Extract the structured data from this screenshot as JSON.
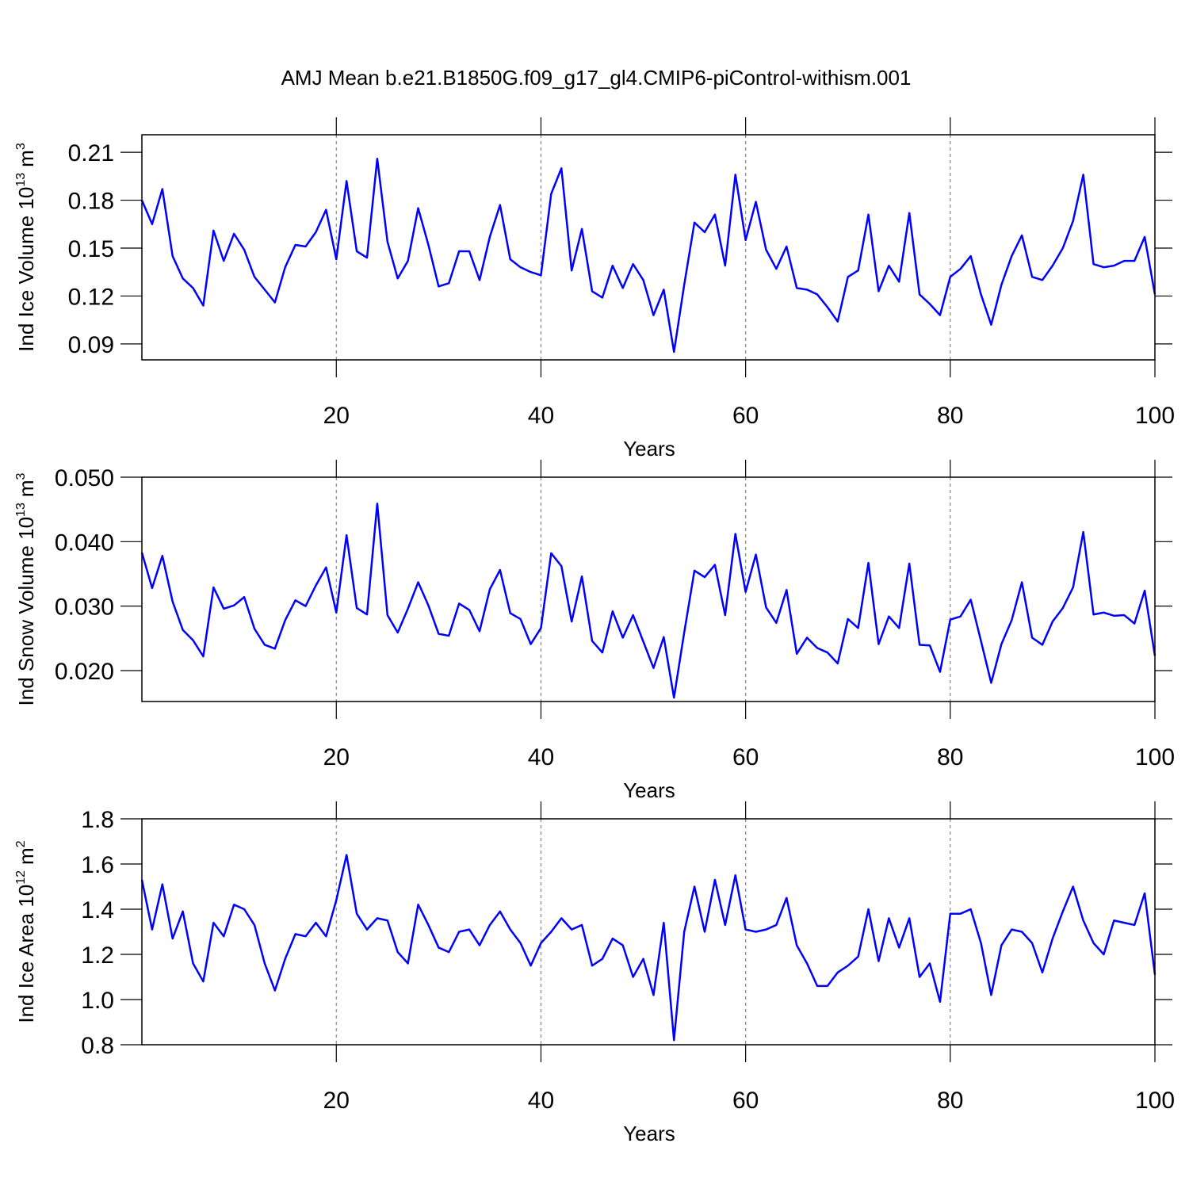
{
  "chart_data": [
    {
      "type": "line",
      "title": "AMJ Mean b.e21.B1850G.f09_g17_gl4.CMIP6-piControl-withism.001",
      "xlabel": "Years",
      "ylabel": {
        "text": "Ind Ice Volume 10",
        "exponent": "13",
        "unit": "m",
        "unit_exponent": "3"
      },
      "xlim": [
        1,
        100
      ],
      "xticks": [
        20,
        40,
        60,
        80,
        100
      ],
      "ylim": [
        0.08,
        0.221
      ],
      "yticks": [
        0.09,
        0.12,
        0.15,
        0.18,
        0.21
      ],
      "grid": "x",
      "x": [
        1,
        2,
        3,
        4,
        5,
        6,
        7,
        8,
        9,
        10,
        11,
        12,
        13,
        14,
        15,
        16,
        17,
        18,
        19,
        20,
        21,
        22,
        23,
        24,
        25,
        26,
        27,
        28,
        29,
        30,
        31,
        32,
        33,
        34,
        35,
        36,
        37,
        38,
        39,
        40,
        41,
        42,
        43,
        44,
        45,
        46,
        47,
        48,
        49,
        50,
        51,
        52,
        53,
        54,
        55,
        56,
        57,
        58,
        59,
        60,
        61,
        62,
        63,
        64,
        65,
        66,
        67,
        68,
        69,
        70,
        71,
        72,
        73,
        74,
        75,
        76,
        77,
        78,
        79,
        80,
        81,
        82,
        83,
        84,
        85,
        86,
        87,
        88,
        89,
        90,
        91,
        92,
        93,
        94,
        95,
        96,
        97,
        98,
        99,
        100
      ],
      "series": [
        {
          "color": "#0000ff",
          "values": [
            0.18,
            0.165,
            0.187,
            0.145,
            0.131,
            0.125,
            0.114,
            0.161,
            0.142,
            0.159,
            0.149,
            0.132,
            0.124,
            0.116,
            0.138,
            0.152,
            0.151,
            0.16,
            0.174,
            0.143,
            0.192,
            0.148,
            0.144,
            0.206,
            0.154,
            0.131,
            0.142,
            0.175,
            0.152,
            0.126,
            0.128,
            0.148,
            0.148,
            0.13,
            0.157,
            0.177,
            0.143,
            0.138,
            0.135,
            0.133,
            0.184,
            0.2,
            0.136,
            0.162,
            0.123,
            0.119,
            0.139,
            0.125,
            0.14,
            0.13,
            0.108,
            0.124,
            0.085,
            0.127,
            0.166,
            0.16,
            0.171,
            0.139,
            0.196,
            0.155,
            0.179,
            0.149,
            0.137,
            0.151,
            0.125,
            0.124,
            0.121,
            0.113,
            0.104,
            0.132,
            0.136,
            0.171,
            0.123,
            0.139,
            0.129,
            0.172,
            0.121,
            0.115,
            0.108,
            0.132,
            0.137,
            0.145,
            0.121,
            0.102,
            0.127,
            0.145,
            0.158,
            0.132,
            0.13,
            0.139,
            0.15,
            0.167,
            0.196,
            0.14,
            0.138,
            0.139,
            0.142,
            0.142,
            0.157,
            0.121
          ]
        }
      ]
    },
    {
      "type": "line",
      "xlabel": "Years",
      "ylabel": {
        "text": "Ind Snow Volume 10",
        "exponent": "13",
        "unit": "m",
        "unit_exponent": "3"
      },
      "xlim": [
        1,
        100
      ],
      "xticks": [
        20,
        40,
        60,
        80,
        100
      ],
      "ylim": [
        0.0152,
        0.05
      ],
      "yticks": [
        {
          "value": 0.02,
          "label": "0.020"
        },
        {
          "value": 0.03,
          "label": "0.030"
        },
        {
          "value": 0.04,
          "label": "0.040"
        },
        {
          "value": 0.05,
          "label": "0.050"
        }
      ],
      "grid": "x",
      "x": [
        1,
        2,
        3,
        4,
        5,
        6,
        7,
        8,
        9,
        10,
        11,
        12,
        13,
        14,
        15,
        16,
        17,
        18,
        19,
        20,
        21,
        22,
        23,
        24,
        25,
        26,
        27,
        28,
        29,
        30,
        31,
        32,
        33,
        34,
        35,
        36,
        37,
        38,
        39,
        40,
        41,
        42,
        43,
        44,
        45,
        46,
        47,
        48,
        49,
        50,
        51,
        52,
        53,
        54,
        55,
        56,
        57,
        58,
        59,
        60,
        61,
        62,
        63,
        64,
        65,
        66,
        67,
        68,
        69,
        70,
        71,
        72,
        73,
        74,
        75,
        76,
        77,
        78,
        79,
        80,
        81,
        82,
        83,
        84,
        85,
        86,
        87,
        88,
        89,
        90,
        91,
        92,
        93,
        94,
        95,
        96,
        97,
        98,
        99,
        100
      ],
      "series": [
        {
          "color": "#0000ff",
          "values": [
            0.0383,
            0.0328,
            0.0378,
            0.0307,
            0.0263,
            0.0247,
            0.0222,
            0.0329,
            0.0296,
            0.0301,
            0.0314,
            0.0265,
            0.024,
            0.0234,
            0.0278,
            0.0309,
            0.03,
            0.0332,
            0.036,
            0.029,
            0.041,
            0.0297,
            0.0287,
            0.0459,
            0.0286,
            0.0259,
            0.0296,
            0.0337,
            0.0301,
            0.0257,
            0.0254,
            0.0304,
            0.0294,
            0.0261,
            0.0326,
            0.0356,
            0.0289,
            0.028,
            0.0241,
            0.0266,
            0.0382,
            0.0362,
            0.0276,
            0.0346,
            0.0246,
            0.0228,
            0.0292,
            0.0251,
            0.0286,
            0.0245,
            0.0204,
            0.0252,
            0.0158,
            0.0259,
            0.0355,
            0.0345,
            0.0364,
            0.0286,
            0.0412,
            0.0322,
            0.038,
            0.0298,
            0.0274,
            0.0325,
            0.0226,
            0.0251,
            0.0235,
            0.0228,
            0.0211,
            0.028,
            0.0266,
            0.0367,
            0.0241,
            0.0284,
            0.0266,
            0.0366,
            0.024,
            0.0239,
            0.0198,
            0.0279,
            0.0284,
            0.031,
            0.0246,
            0.0181,
            0.0241,
            0.0278,
            0.0337,
            0.0251,
            0.024,
            0.0276,
            0.0297,
            0.0329,
            0.0415,
            0.0287,
            0.029,
            0.0285,
            0.0286,
            0.0273,
            0.0324,
            0.0223
          ]
        }
      ]
    },
    {
      "type": "line",
      "xlabel": "Years",
      "ylabel": {
        "text": "Ind Ice Area 10",
        "exponent": "12",
        "unit": "m",
        "unit_exponent": "2"
      },
      "xlim": [
        1,
        100
      ],
      "xticks": [
        20,
        40,
        60,
        80,
        100
      ],
      "ylim": [
        0.8,
        1.8
      ],
      "yticks": [
        0.8,
        {
          "value": 1.0,
          "label": "1.0"
        },
        1.2,
        1.4,
        1.6,
        1.8
      ],
      "grid": "x",
      "x": [
        1,
        2,
        3,
        4,
        5,
        6,
        7,
        8,
        9,
        10,
        11,
        12,
        13,
        14,
        15,
        16,
        17,
        18,
        19,
        20,
        21,
        22,
        23,
        24,
        25,
        26,
        27,
        28,
        29,
        30,
        31,
        32,
        33,
        34,
        35,
        36,
        37,
        38,
        39,
        40,
        41,
        42,
        43,
        44,
        45,
        46,
        47,
        48,
        49,
        50,
        51,
        52,
        53,
        54,
        55,
        56,
        57,
        58,
        59,
        60,
        61,
        62,
        63,
        64,
        65,
        66,
        67,
        68,
        69,
        70,
        71,
        72,
        73,
        74,
        75,
        76,
        77,
        78,
        79,
        80,
        81,
        82,
        83,
        84,
        85,
        86,
        87,
        88,
        89,
        90,
        91,
        92,
        93,
        94,
        95,
        96,
        97,
        98,
        99,
        100
      ],
      "series": [
        {
          "color": "#0000ff",
          "values": [
            1.53,
            1.31,
            1.51,
            1.27,
            1.39,
            1.16,
            1.08,
            1.34,
            1.28,
            1.42,
            1.4,
            1.33,
            1.16,
            1.04,
            1.18,
            1.29,
            1.28,
            1.34,
            1.28,
            1.44,
            1.64,
            1.38,
            1.31,
            1.36,
            1.35,
            1.21,
            1.16,
            1.42,
            1.33,
            1.23,
            1.21,
            1.3,
            1.31,
            1.24,
            1.33,
            1.39,
            1.31,
            1.25,
            1.15,
            1.25,
            1.3,
            1.36,
            1.31,
            1.33,
            1.15,
            1.18,
            1.27,
            1.24,
            1.1,
            1.18,
            1.02,
            1.34,
            0.82,
            1.3,
            1.5,
            1.3,
            1.53,
            1.33,
            1.55,
            1.31,
            1.3,
            1.31,
            1.33,
            1.45,
            1.24,
            1.16,
            1.06,
            1.06,
            1.12,
            1.15,
            1.19,
            1.4,
            1.17,
            1.36,
            1.23,
            1.36,
            1.1,
            1.16,
            0.99,
            1.38,
            1.38,
            1.4,
            1.25,
            1.02,
            1.24,
            1.31,
            1.3,
            1.25,
            1.12,
            1.27,
            1.39,
            1.5,
            1.35,
            1.25,
            1.2,
            1.35,
            1.34,
            1.33,
            1.47,
            1.11
          ]
        }
      ]
    }
  ]
}
